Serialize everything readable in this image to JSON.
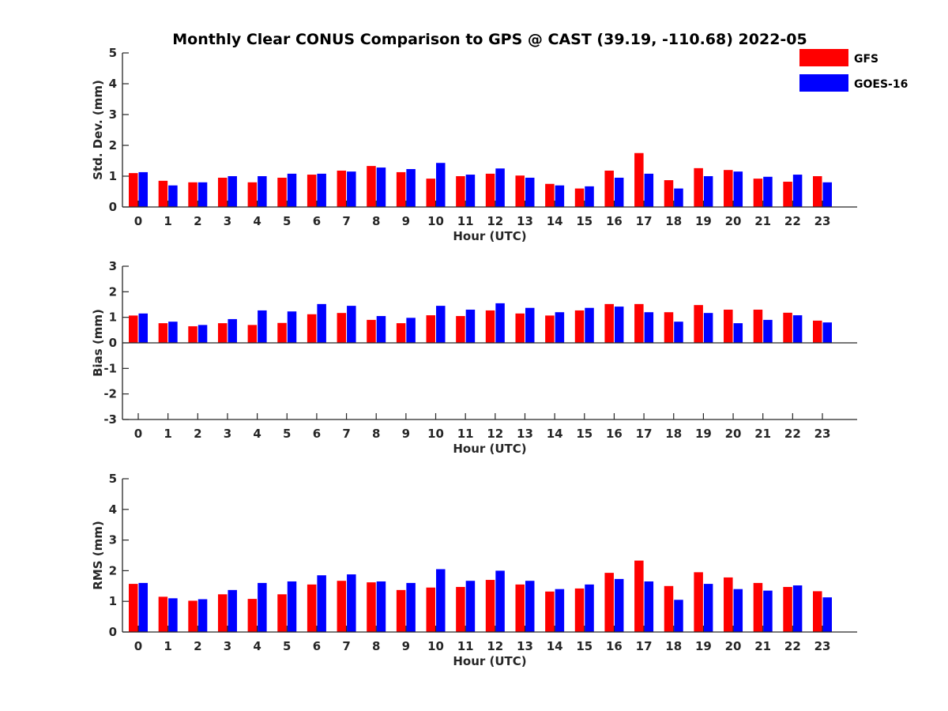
{
  "chart_data": [
    {
      "type": "bar",
      "title": "Monthly Clear CONUS Comparison to GPS @ CAST (39.19, -110.68) 2022-05",
      "xlabel": "Hour (UTC)",
      "ylabel": "Std. Dev. (mm)",
      "ylim": [
        0,
        5
      ],
      "yticks": [
        0,
        1,
        2,
        3,
        4,
        5
      ],
      "categories": [
        "0",
        "1",
        "2",
        "3",
        "4",
        "5",
        "6",
        "7",
        "8",
        "9",
        "10",
        "11",
        "12",
        "13",
        "14",
        "15",
        "16",
        "17",
        "18",
        "19",
        "20",
        "21",
        "22",
        "23"
      ],
      "series": [
        {
          "name": "GFS",
          "color": "#ff0000",
          "values": [
            1.1,
            0.85,
            0.8,
            0.95,
            0.8,
            0.95,
            1.05,
            1.18,
            1.33,
            1.13,
            0.92,
            1.0,
            1.08,
            1.02,
            0.75,
            0.6,
            1.18,
            1.75,
            0.87,
            1.26,
            1.2,
            0.92,
            0.82,
            1.0
          ]
        },
        {
          "name": "GOES-16",
          "color": "#0000ff",
          "values": [
            1.13,
            0.7,
            0.8,
            1.0,
            1.0,
            1.08,
            1.08,
            1.15,
            1.28,
            1.23,
            1.43,
            1.05,
            1.25,
            0.95,
            0.7,
            0.67,
            0.95,
            1.08,
            0.6,
            1.0,
            1.15,
            0.98,
            1.05,
            0.8
          ]
        }
      ],
      "legend": {
        "placement": "top-right"
      },
      "grid": false
    },
    {
      "type": "bar",
      "xlabel": "Hour (UTC)",
      "ylabel": "Bias (mm)",
      "ylim": [
        -3,
        3
      ],
      "yticks": [
        -3,
        -2,
        -1,
        0,
        1,
        2,
        3
      ],
      "categories": [
        "0",
        "1",
        "2",
        "3",
        "4",
        "5",
        "6",
        "7",
        "8",
        "9",
        "10",
        "11",
        "12",
        "13",
        "14",
        "15",
        "16",
        "17",
        "18",
        "19",
        "20",
        "21",
        "22",
        "23"
      ],
      "series": [
        {
          "name": "GFS",
          "color": "#ff0000",
          "values": [
            1.07,
            0.77,
            0.65,
            0.77,
            0.7,
            0.78,
            1.12,
            1.17,
            0.9,
            0.77,
            1.08,
            1.05,
            1.27,
            1.15,
            1.07,
            1.27,
            1.52,
            1.52,
            1.2,
            1.48,
            1.3,
            1.3,
            1.18,
            0.87
          ]
        },
        {
          "name": "GOES-16",
          "color": "#0000ff",
          "values": [
            1.15,
            0.83,
            0.7,
            0.93,
            1.27,
            1.23,
            1.52,
            1.45,
            1.05,
            0.98,
            1.45,
            1.3,
            1.55,
            1.37,
            1.2,
            1.37,
            1.42,
            1.2,
            0.83,
            1.17,
            0.77,
            0.9,
            1.08,
            0.8
          ]
        }
      ],
      "grid": false
    },
    {
      "type": "bar",
      "xlabel": "Hour (UTC)",
      "ylabel": "RMS (mm)",
      "ylim": [
        0,
        5
      ],
      "yticks": [
        0,
        1,
        2,
        3,
        4,
        5
      ],
      "categories": [
        "0",
        "1",
        "2",
        "3",
        "4",
        "5",
        "6",
        "7",
        "8",
        "9",
        "10",
        "11",
        "12",
        "13",
        "14",
        "15",
        "16",
        "17",
        "18",
        "19",
        "20",
        "21",
        "22",
        "23"
      ],
      "series": [
        {
          "name": "GFS",
          "color": "#ff0000",
          "values": [
            1.57,
            1.15,
            1.02,
            1.23,
            1.08,
            1.23,
            1.55,
            1.67,
            1.62,
            1.37,
            1.45,
            1.47,
            1.7,
            1.55,
            1.32,
            1.42,
            1.93,
            2.33,
            1.5,
            1.95,
            1.78,
            1.6,
            1.47,
            1.33
          ]
        },
        {
          "name": "GOES-16",
          "color": "#0000ff",
          "values": [
            1.6,
            1.1,
            1.07,
            1.37,
            1.6,
            1.65,
            1.85,
            1.88,
            1.65,
            1.6,
            2.05,
            1.67,
            2.0,
            1.67,
            1.4,
            1.55,
            1.73,
            1.65,
            1.05,
            1.57,
            1.4,
            1.35,
            1.52,
            1.13
          ]
        }
      ],
      "grid": false
    }
  ]
}
